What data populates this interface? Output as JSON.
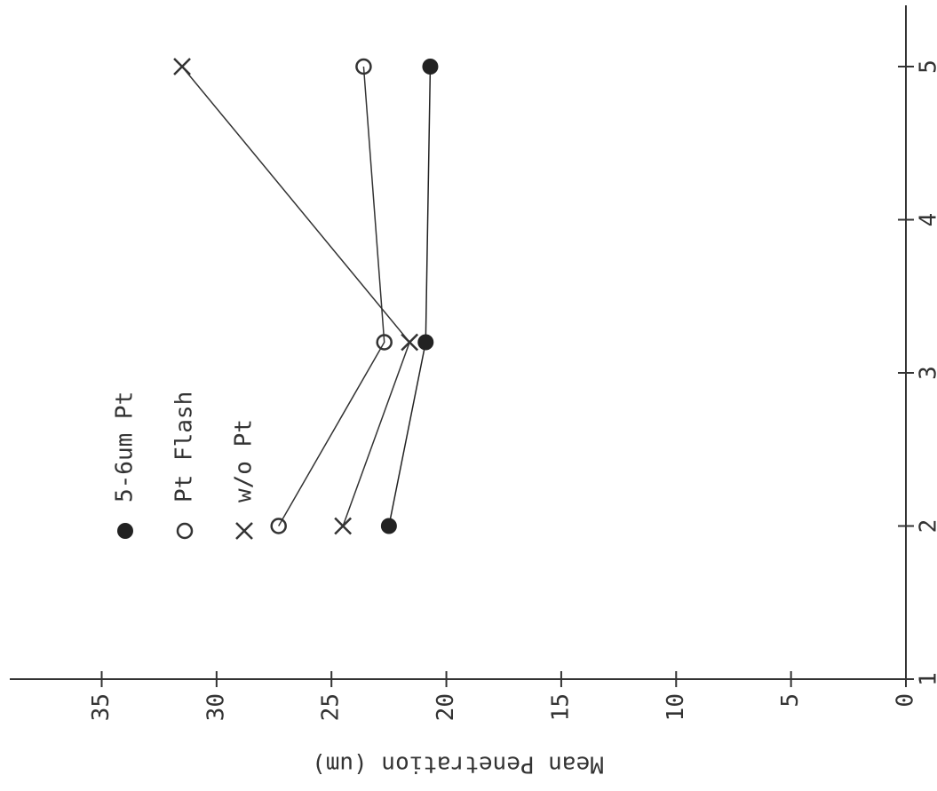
{
  "chart_data": {
    "type": "line",
    "ylabel": "Mean Penetration (um)",
    "x": [
      2,
      3.2,
      5
    ],
    "series": [
      {
        "name": "w/o Pt",
        "marker": "x",
        "color": "#333333",
        "values": [
          24.5,
          21.6,
          31.5
        ]
      },
      {
        "name": "Pt Flash",
        "marker": "o",
        "color": "#333333",
        "values": [
          27.3,
          22.7,
          23.6
        ]
      },
      {
        "name": "5-6um Pt",
        "marker": "filled",
        "color": "#222222",
        "values": [
          22.5,
          20.9,
          20.7
        ]
      }
    ],
    "xlim": [
      1,
      5.4
    ],
    "xticks": [
      1,
      2,
      3,
      4,
      5
    ],
    "ylim": [
      0,
      39
    ],
    "yticks": [
      0,
      5,
      10,
      15,
      20,
      25,
      30,
      35
    ],
    "grid": false,
    "rotated": true
  }
}
